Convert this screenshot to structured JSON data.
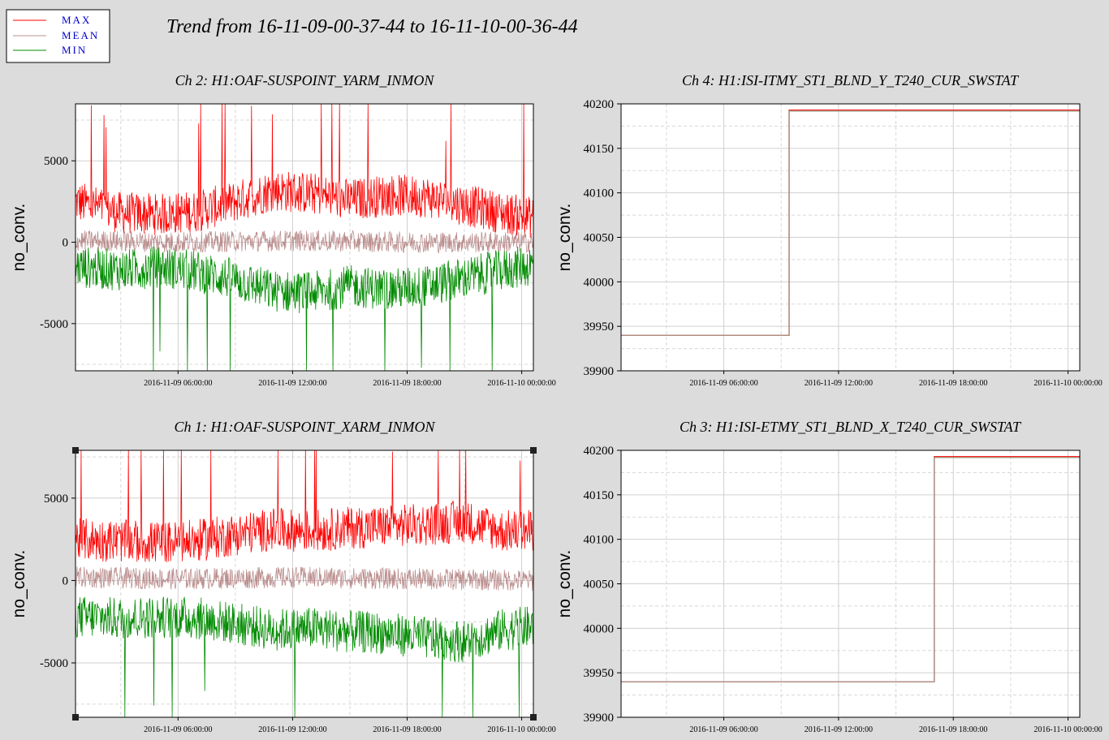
{
  "main_title": "Trend from 16-11-09-00-37-44 to 16-11-10-00-36-44",
  "legend": [
    {
      "label": "MAX",
      "color": "#ff0000"
    },
    {
      "label": "MEAN",
      "color": "#bc8f8f"
    },
    {
      "label": "MIN",
      "color": "#008b00"
    }
  ],
  "chart_data": [
    {
      "type": "line",
      "title": "Ch 2: H1:OAF-SUSPOINT_YARM_INMON",
      "ylabel": "no_conv.",
      "xlim": [
        "2016-11-09 00:37:44",
        "2016-11-10 00:36:44"
      ],
      "ylim": [
        -7900,
        8500
      ],
      "yticks": [
        -5000,
        0,
        5000
      ],
      "xticks": [
        "2016-11-09 06:00:00",
        "2016-11-09 12:00:00",
        "2016-11-09 18:00:00",
        "2016-11-10 00:00:00"
      ],
      "grid": true,
      "series": [
        {
          "name": "MAX",
          "color": "#ff0000",
          "points": [
            [
              "2016-11-09 00:37:44",
              2500
            ],
            [
              "2016-11-09 03:00:00",
              1800
            ],
            [
              "2016-11-09 05:00:00",
              1700
            ],
            [
              "2016-11-09 07:00:00",
              1900
            ],
            [
              "2016-11-09 09:00:00",
              2500
            ],
            [
              "2016-11-09 11:00:00",
              3200
            ],
            [
              "2016-11-09 13:00:00",
              3000
            ],
            [
              "2016-11-09 15:00:00",
              2600
            ],
            [
              "2016-11-09 17:00:00",
              2900
            ],
            [
              "2016-11-09 19:00:00",
              2800
            ],
            [
              "2016-11-09 21:00:00",
              2300
            ],
            [
              "2016-11-09 23:00:00",
              1800
            ],
            [
              "2016-11-10 00:36:44",
              1500
            ]
          ]
        },
        {
          "name": "MEAN",
          "color": "#bc8f8f",
          "points": [
            [
              "2016-11-09 00:37:44",
              100
            ],
            [
              "2016-11-09 06:00:00",
              0
            ],
            [
              "2016-11-09 12:00:00",
              100
            ],
            [
              "2016-11-09 18:00:00",
              0
            ],
            [
              "2016-11-10 00:36:44",
              0
            ]
          ]
        },
        {
          "name": "MIN",
          "color": "#008b00",
          "points": [
            [
              "2016-11-09 00:37:44",
              -1500
            ],
            [
              "2016-11-09 03:00:00",
              -1700
            ],
            [
              "2016-11-09 05:00:00",
              -1500
            ],
            [
              "2016-11-09 07:00:00",
              -1800
            ],
            [
              "2016-11-09 09:00:00",
              -2300
            ],
            [
              "2016-11-09 11:00:00",
              -3000
            ],
            [
              "2016-11-09 13:00:00",
              -3100
            ],
            [
              "2016-11-09 15:00:00",
              -2700
            ],
            [
              "2016-11-09 17:00:00",
              -2900
            ],
            [
              "2016-11-09 19:00:00",
              -2700
            ],
            [
              "2016-11-09 21:00:00",
              -2200
            ],
            [
              "2016-11-09 23:00:00",
              -1700
            ],
            [
              "2016-11-10 00:36:44",
              -1400
            ]
          ]
        }
      ]
    },
    {
      "type": "line",
      "title": "Ch 4: H1:ISI-ITMY_ST1_BLND_Y_T240_CUR_SWSTAT",
      "ylabel": "no_conv.",
      "xlim": [
        "2016-11-09 00:37:44",
        "2016-11-10 00:36:44"
      ],
      "ylim": [
        39900,
        40200
      ],
      "yticks": [
        39900,
        39950,
        40000,
        40050,
        40100,
        40150,
        40200
      ],
      "xticks": [
        "2016-11-09 06:00:00",
        "2016-11-09 12:00:00",
        "2016-11-09 18:00:00",
        "2016-11-10 00:00:00"
      ],
      "grid": true,
      "series": [
        {
          "name": "MAX",
          "color": "#ff0000",
          "points": [
            [
              "2016-11-09 00:37:44",
              39940
            ],
            [
              "2016-11-09 09:25:00",
              39940
            ],
            [
              "2016-11-09 09:25:00",
              40193
            ],
            [
              "2016-11-10 00:36:44",
              40193
            ]
          ]
        },
        {
          "name": "MEAN",
          "color": "#bc8f8f",
          "points": [
            [
              "2016-11-09 00:37:44",
              39940
            ],
            [
              "2016-11-09 09:25:00",
              39940
            ],
            [
              "2016-11-09 09:25:00",
              40192
            ],
            [
              "2016-11-10 00:36:44",
              40192
            ]
          ]
        },
        {
          "name": "MIN",
          "color": "#008b00",
          "points": [
            [
              "2016-11-09 00:37:44",
              39940
            ],
            [
              "2016-11-09 09:25:00",
              39940
            ],
            [
              "2016-11-09 09:25:00",
              40192
            ],
            [
              "2016-11-10 00:36:44",
              40192
            ]
          ]
        }
      ]
    },
    {
      "type": "line",
      "title": "Ch 1: H1:OAF-SUSPOINT_XARM_INMON",
      "ylabel": "no_conv.",
      "xlim": [
        "2016-11-09 00:37:44",
        "2016-11-10 00:36:44"
      ],
      "ylim": [
        -8300,
        7900
      ],
      "yticks": [
        -5000,
        0,
        5000
      ],
      "xticks": [
        "2016-11-09 06:00:00",
        "2016-11-09 12:00:00",
        "2016-11-09 18:00:00",
        "2016-11-10 00:00:00"
      ],
      "grid": true,
      "series": [
        {
          "name": "MAX",
          "color": "#ff0000",
          "points": [
            [
              "2016-11-09 00:37:44",
              2500
            ],
            [
              "2016-11-09 03:00:00",
              2400
            ],
            [
              "2016-11-09 05:00:00",
              2300
            ],
            [
              "2016-11-09 07:00:00",
              2400
            ],
            [
              "2016-11-09 09:00:00",
              2800
            ],
            [
              "2016-11-09 11:00:00",
              3100
            ],
            [
              "2016-11-09 13:00:00",
              3000
            ],
            [
              "2016-11-09 15:00:00",
              3200
            ],
            [
              "2016-11-09 17:00:00",
              3300
            ],
            [
              "2016-11-09 19:00:00",
              3400
            ],
            [
              "2016-11-09 21:00:00",
              3600
            ],
            [
              "2016-11-09 23:00:00",
              3000
            ],
            [
              "2016-11-10 00:36:44",
              3000
            ]
          ]
        },
        {
          "name": "MEAN",
          "color": "#bc8f8f",
          "points": [
            [
              "2016-11-09 00:37:44",
              200
            ],
            [
              "2016-11-09 06:00:00",
              100
            ],
            [
              "2016-11-09 12:00:00",
              200
            ],
            [
              "2016-11-09 18:00:00",
              100
            ],
            [
              "2016-11-10 00:36:44",
              0
            ]
          ]
        },
        {
          "name": "MIN",
          "color": "#008b00",
          "points": [
            [
              "2016-11-09 00:37:44",
              -2200
            ],
            [
              "2016-11-09 03:00:00",
              -2300
            ],
            [
              "2016-11-09 05:00:00",
              -2200
            ],
            [
              "2016-11-09 07:00:00",
              -2300
            ],
            [
              "2016-11-09 09:00:00",
              -2600
            ],
            [
              "2016-11-09 11:00:00",
              -3000
            ],
            [
              "2016-11-09 13:00:00",
              -2900
            ],
            [
              "2016-11-09 15:00:00",
              -3100
            ],
            [
              "2016-11-09 17:00:00",
              -3200
            ],
            [
              "2016-11-09 19:00:00",
              -3500
            ],
            [
              "2016-11-09 21:00:00",
              -3700
            ],
            [
              "2016-11-09 23:00:00",
              -3000
            ],
            [
              "2016-11-10 00:36:44",
              -2800
            ]
          ]
        }
      ]
    },
    {
      "type": "line",
      "title": "Ch 3: H1:ISI-ETMY_ST1_BLND_X_T240_CUR_SWSTAT",
      "ylabel": "no_conv.",
      "xlim": [
        "2016-11-09 00:37:44",
        "2016-11-10 00:36:44"
      ],
      "ylim": [
        39900,
        40200
      ],
      "yticks": [
        39900,
        39950,
        40000,
        40050,
        40100,
        40150,
        40200
      ],
      "xticks": [
        "2016-11-09 06:00:00",
        "2016-11-09 12:00:00",
        "2016-11-09 18:00:00",
        "2016-11-10 00:00:00"
      ],
      "grid": true,
      "series": [
        {
          "name": "MAX",
          "color": "#ff0000",
          "points": [
            [
              "2016-11-09 00:37:44",
              39940
            ],
            [
              "2016-11-09 17:00:00",
              39940
            ],
            [
              "2016-11-09 17:00:00",
              40193
            ],
            [
              "2016-11-10 00:36:44",
              40193
            ]
          ]
        },
        {
          "name": "MEAN",
          "color": "#bc8f8f",
          "points": [
            [
              "2016-11-09 00:37:44",
              39940
            ],
            [
              "2016-11-09 17:00:00",
              39940
            ],
            [
              "2016-11-09 17:00:00",
              40192
            ],
            [
              "2016-11-10 00:36:44",
              40192
            ]
          ]
        },
        {
          "name": "MIN",
          "color": "#008b00",
          "points": [
            [
              "2016-11-09 00:37:44",
              39940
            ],
            [
              "2016-11-09 17:00:00",
              39940
            ],
            [
              "2016-11-09 17:00:00",
              40192
            ],
            [
              "2016-11-10 00:36:44",
              40192
            ]
          ]
        }
      ]
    }
  ]
}
